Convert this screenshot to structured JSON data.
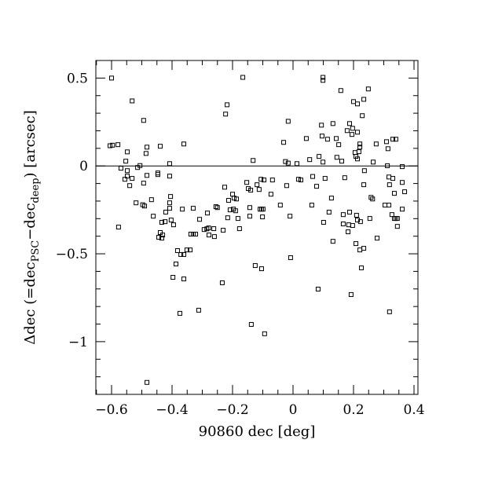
{
  "figure": {
    "background": "#ffffff",
    "axis_color": "#000000",
    "marker_color": "#000000"
  },
  "chart_data": {
    "type": "scatter",
    "title": "",
    "xlabel": "90860 dec [deg]",
    "ylabel_plain": "Δdec (=dec_PSC−dec_deep) [arcsec]",
    "ylabel_parts": [
      {
        "text": "Δdec (=dec",
        "sub": false
      },
      {
        "text": "PSC",
        "sub": true
      },
      {
        "text": "−dec",
        "sub": false
      },
      {
        "text": "deep",
        "sub": true
      },
      {
        "text": ") [arcsec]",
        "sub": false
      }
    ],
    "xlim": [
      -0.652,
      0.413
    ],
    "ylim": [
      -1.3,
      0.6
    ],
    "grid": false,
    "legend": null,
    "hline_y": 0,
    "marker": "open-square",
    "marker_size_px": 5,
    "x_minor_step": 0.05,
    "y_minor_step": 0.1,
    "x_major_ticks": [
      {
        "v": -0.6,
        "label": "−0.6"
      },
      {
        "v": -0.4,
        "label": "−0.4"
      },
      {
        "v": -0.2,
        "label": "−0.2"
      },
      {
        "v": 0.0,
        "label": "0"
      },
      {
        "v": 0.2,
        "label": "0.2"
      },
      {
        "v": 0.4,
        "label": "0.4"
      }
    ],
    "y_major_ticks": [
      {
        "v": 0.5,
        "label": "0.5"
      },
      {
        "v": 0.0,
        "label": "0"
      },
      {
        "v": -0.5,
        "label": "−0.5"
      },
      {
        "v": -1.0,
        "label": "−1"
      }
    ],
    "points": [
      [
        -0.6,
        0.5
      ],
      [
        -0.532,
        0.37
      ],
      [
        -0.494,
        0.259
      ],
      [
        -0.605,
        0.115
      ],
      [
        -0.597,
        0.118
      ],
      [
        -0.579,
        0.121
      ],
      [
        -0.548,
        0.08
      ],
      [
        -0.483,
        0.107
      ],
      [
        -0.486,
        0.071
      ],
      [
        -0.439,
        0.112
      ],
      [
        -0.361,
        0.125
      ],
      [
        -0.553,
        0.027
      ],
      [
        -0.569,
        -0.013
      ],
      [
        -0.548,
        -0.027
      ],
      [
        -0.514,
        -0.009
      ],
      [
        -0.506,
        0.002
      ],
      [
        -0.408,
        0.013
      ],
      [
        -0.447,
        -0.04
      ],
      [
        -0.166,
        0.504
      ],
      [
        -0.218,
        0.348
      ],
      [
        -0.223,
        0.295
      ],
      [
        -0.016,
        0.254
      ],
      [
        -0.031,
        0.134
      ],
      [
        0.044,
        0.156
      ],
      [
        -0.132,
        0.031
      ],
      [
        -0.025,
        0.025
      ],
      [
        -0.016,
        0.016
      ],
      [
        0.013,
        0.013
      ],
      [
        0.055,
        0.036
      ],
      [
        0.099,
        0.504
      ],
      [
        0.099,
        0.487
      ],
      [
        0.158,
        0.429
      ],
      [
        0.249,
        0.438
      ],
      [
        0.2,
        0.366
      ],
      [
        0.213,
        0.353
      ],
      [
        0.234,
        0.379
      ],
      [
        0.229,
        0.286
      ],
      [
        0.094,
        0.232
      ],
      [
        0.132,
        0.241
      ],
      [
        0.187,
        0.241
      ],
      [
        0.179,
        0.201
      ],
      [
        0.197,
        0.214
      ],
      [
        0.195,
        0.179
      ],
      [
        0.213,
        0.192
      ],
      [
        0.096,
        0.17
      ],
      [
        0.114,
        0.152
      ],
      [
        0.143,
        0.156
      ],
      [
        0.151,
        0.121
      ],
      [
        0.221,
        0.125
      ],
      [
        0.221,
        0.107
      ],
      [
        0.275,
        0.125
      ],
      [
        0.309,
        0.138
      ],
      [
        0.33,
        0.152
      ],
      [
        0.34,
        0.152
      ],
      [
        0.314,
        0.098
      ],
      [
        0.205,
        0.076
      ],
      [
        0.218,
        0.081
      ],
      [
        0.208,
        0.054
      ],
      [
        0.213,
        0.04
      ],
      [
        0.086,
        0.054
      ],
      [
        0.099,
        0.022
      ],
      [
        0.145,
        0.049
      ],
      [
        0.161,
        0.027
      ],
      [
        0.265,
        0.022
      ],
      [
        0.312,
        0.001
      ],
      [
        0.361,
        -0.004
      ],
      [
        0.236,
        -0.027
      ],
      [
        -0.548,
        -0.058
      ],
      [
        -0.556,
        -0.076
      ],
      [
        -0.532,
        -0.071
      ],
      [
        -0.54,
        -0.112
      ],
      [
        -0.483,
        -0.054
      ],
      [
        -0.447,
        -0.049
      ],
      [
        -0.408,
        -0.058
      ],
      [
        -0.494,
        -0.098
      ],
      [
        -0.519,
        -0.21
      ],
      [
        -0.497,
        -0.221
      ],
      [
        -0.491,
        -0.228
      ],
      [
        -0.468,
        -0.192
      ],
      [
        -0.405,
        -0.174
      ],
      [
        -0.408,
        -0.21
      ],
      [
        -0.408,
        -0.241
      ],
      [
        -0.421,
        -0.263
      ],
      [
        -0.366,
        -0.246
      ],
      [
        -0.33,
        -0.241
      ],
      [
        -0.462,
        -0.286
      ],
      [
        -0.434,
        -0.321
      ],
      [
        -0.423,
        -0.317
      ],
      [
        -0.403,
        -0.308
      ],
      [
        -0.395,
        -0.335
      ],
      [
        -0.309,
        -0.304
      ],
      [
        -0.577,
        -0.348
      ],
      [
        -0.439,
        -0.379
      ],
      [
        -0.431,
        -0.393
      ],
      [
        -0.444,
        -0.406
      ],
      [
        -0.434,
        -0.411
      ],
      [
        -0.338,
        -0.388
      ],
      [
        -0.33,
        -0.388
      ],
      [
        -0.322,
        -0.388
      ],
      [
        -0.382,
        -0.482
      ],
      [
        -0.371,
        -0.504
      ],
      [
        -0.361,
        -0.504
      ],
      [
        -0.351,
        -0.478
      ],
      [
        -0.34,
        -0.478
      ],
      [
        -0.387,
        -0.558
      ],
      [
        -0.397,
        -0.634
      ],
      [
        -0.361,
        -0.643
      ],
      [
        -0.106,
        -0.076
      ],
      [
        -0.096,
        -0.08
      ],
      [
        -0.068,
        -0.08
      ],
      [
        -0.153,
        -0.094
      ],
      [
        -0.119,
        -0.107
      ],
      [
        -0.226,
        -0.121
      ],
      [
        -0.148,
        -0.129
      ],
      [
        -0.14,
        -0.138
      ],
      [
        -0.112,
        -0.134
      ],
      [
        -0.021,
        -0.112
      ],
      [
        0.018,
        -0.076
      ],
      [
        0.026,
        -0.08
      ],
      [
        0.065,
        -0.06
      ],
      [
        -0.073,
        -0.161
      ],
      [
        -0.2,
        -0.161
      ],
      [
        -0.195,
        -0.183
      ],
      [
        -0.187,
        -0.188
      ],
      [
        -0.213,
        -0.196
      ],
      [
        -0.255,
        -0.232
      ],
      [
        -0.25,
        -0.237
      ],
      [
        -0.283,
        -0.268
      ],
      [
        -0.208,
        -0.25
      ],
      [
        -0.197,
        -0.246
      ],
      [
        -0.19,
        -0.255
      ],
      [
        -0.143,
        -0.237
      ],
      [
        -0.109,
        -0.246
      ],
      [
        -0.104,
        -0.246
      ],
      [
        -0.099,
        -0.246
      ],
      [
        -0.042,
        -0.223
      ],
      [
        0.062,
        -0.223
      ],
      [
        -0.216,
        -0.295
      ],
      [
        -0.182,
        -0.299
      ],
      [
        -0.143,
        -0.286
      ],
      [
        -0.101,
        -0.29
      ],
      [
        -0.01,
        -0.286
      ],
      [
        -0.294,
        -0.362
      ],
      [
        -0.285,
        -0.358
      ],
      [
        -0.279,
        -0.353
      ],
      [
        -0.262,
        -0.357
      ],
      [
        -0.278,
        -0.393
      ],
      [
        -0.26,
        -0.402
      ],
      [
        -0.231,
        -0.366
      ],
      [
        -0.177,
        -0.357
      ],
      [
        -0.008,
        -0.522
      ],
      [
        -0.125,
        -0.567
      ],
      [
        -0.104,
        -0.585
      ],
      [
        -0.234,
        -0.665
      ],
      [
        0.106,
        -0.071
      ],
      [
        0.171,
        -0.067
      ],
      [
        0.078,
        -0.116
      ],
      [
        0.234,
        -0.107
      ],
      [
        0.317,
        -0.063
      ],
      [
        0.33,
        -0.071
      ],
      [
        0.319,
        -0.107
      ],
      [
        0.361,
        -0.094
      ],
      [
        0.335,
        -0.156
      ],
      [
        0.369,
        -0.147
      ],
      [
        0.127,
        -0.183
      ],
      [
        0.258,
        -0.179
      ],
      [
        0.263,
        -0.188
      ],
      [
        0.304,
        -0.223
      ],
      [
        0.317,
        -0.223
      ],
      [
        0.361,
        -0.246
      ],
      [
        0.119,
        -0.263
      ],
      [
        0.187,
        -0.263
      ],
      [
        0.166,
        -0.277
      ],
      [
        0.21,
        -0.281
      ],
      [
        0.327,
        -0.277
      ],
      [
        0.335,
        -0.299
      ],
      [
        0.34,
        -0.299
      ],
      [
        0.345,
        -0.299
      ],
      [
        0.166,
        -0.33
      ],
      [
        0.184,
        -0.335
      ],
      [
        0.197,
        -0.339
      ],
      [
        0.213,
        -0.308
      ],
      [
        0.223,
        -0.317
      ],
      [
        0.254,
        -0.299
      ],
      [
        0.101,
        -0.321
      ],
      [
        0.345,
        -0.344
      ],
      [
        0.182,
        -0.375
      ],
      [
        0.278,
        -0.411
      ],
      [
        0.132,
        -0.429
      ],
      [
        0.208,
        -0.442
      ],
      [
        0.221,
        -0.478
      ],
      [
        0.234,
        -0.469
      ],
      [
        0.226,
        -0.58
      ],
      [
        -0.374,
        -0.839
      ],
      [
        -0.312,
        -0.821
      ],
      [
        -0.483,
        -1.232
      ],
      [
        -0.138,
        -0.902
      ],
      [
        -0.094,
        -0.955
      ],
      [
        0.083,
        -0.701
      ],
      [
        0.192,
        -0.732
      ],
      [
        0.319,
        -0.83
      ]
    ]
  }
}
